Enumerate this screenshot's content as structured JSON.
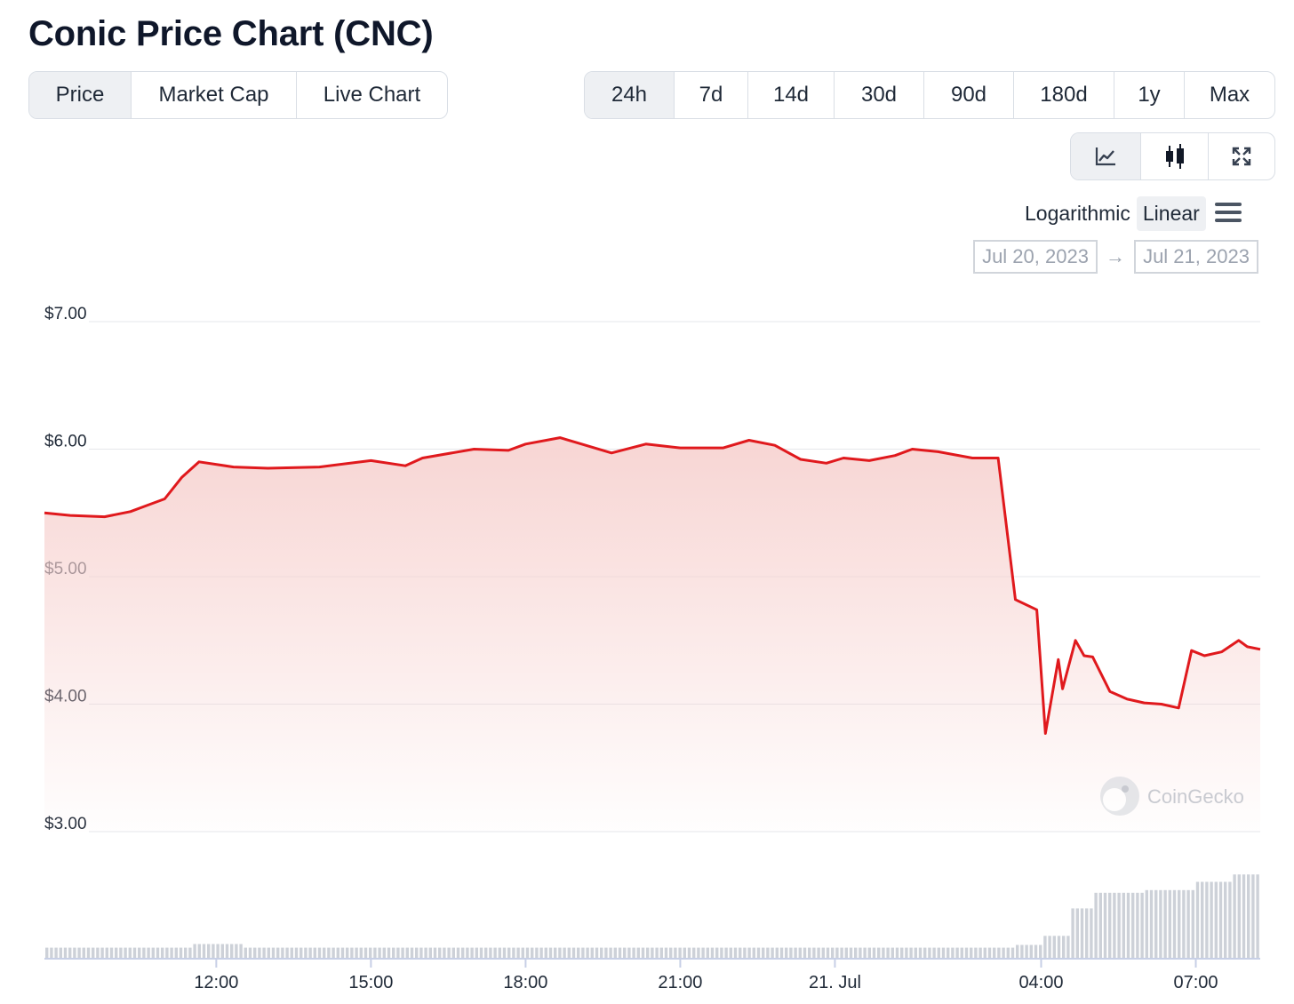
{
  "page": {
    "title": "Conic Price Chart (CNC)"
  },
  "view_tabs": [
    {
      "label": "Price",
      "active": true
    },
    {
      "label": "Market Cap",
      "active": false
    },
    {
      "label": "Live Chart",
      "active": false
    }
  ],
  "range_tabs": [
    {
      "label": "24h",
      "active": true
    },
    {
      "label": "7d",
      "active": false
    },
    {
      "label": "14d",
      "active": false
    },
    {
      "label": "30d",
      "active": false
    },
    {
      "label": "90d",
      "active": false
    },
    {
      "label": "180d",
      "active": false
    },
    {
      "label": "1y",
      "active": false
    },
    {
      "label": "Max",
      "active": false
    }
  ],
  "chart_type_buttons": [
    {
      "icon": "line-chart-icon",
      "active": true
    },
    {
      "icon": "candlestick-icon",
      "active": false
    },
    {
      "icon": "fullscreen-icon",
      "active": false
    }
  ],
  "scale": {
    "log_label": "Logarithmic",
    "linear_label": "Linear",
    "active": "Linear",
    "menu_icon": "hamburger-menu-icon"
  },
  "date_range": {
    "from": "Jul 20, 2023",
    "to": "Jul 21, 2023",
    "arrow": "→"
  },
  "watermark": {
    "text": "CoinGecko",
    "icon": "coingecko-logo-icon"
  },
  "colors": {
    "line": "#e0191d",
    "fill_top": "#f7d3d1",
    "volume": "#cdd1d8",
    "grid": "#e5e7eb",
    "axis": "#c7cfe6"
  },
  "chart_data": {
    "type": "line",
    "title": "",
    "xlabel": "",
    "ylabel": "",
    "ylim": [
      3,
      7
    ],
    "y_ticks": [
      {
        "value": 7,
        "label": "$7.00"
      },
      {
        "value": 6,
        "label": "$6.00"
      },
      {
        "value": 5,
        "label": "$5.00"
      },
      {
        "value": 4,
        "label": "$4.00"
      },
      {
        "value": 3,
        "label": "$3.00"
      }
    ],
    "xlim": [
      "2023-07-20 08:40",
      "2023-07-21 08:15"
    ],
    "x_ticks": [
      {
        "time": "2023-07-20 12:00",
        "label": "12:00"
      },
      {
        "time": "2023-07-20 15:00",
        "label": "15:00"
      },
      {
        "time": "2023-07-20 18:00",
        "label": "18:00"
      },
      {
        "time": "2023-07-20 21:00",
        "label": "21:00"
      },
      {
        "time": "2023-07-21 00:00",
        "label": "21. Jul"
      },
      {
        "time": "2023-07-21 04:00",
        "label": "04:00"
      },
      {
        "time": "2023-07-21 07:00",
        "label": "07:00"
      }
    ],
    "series": [
      {
        "x": [
          "2023-07-20 08:40",
          "2023-07-20 09:10",
          "2023-07-20 09:50",
          "2023-07-20 10:20",
          "2023-07-20 10:40",
          "2023-07-20 11:00",
          "2023-07-20 11:20",
          "2023-07-20 11:40",
          "2023-07-20 12:20",
          "2023-07-20 13:00",
          "2023-07-20 14:00",
          "2023-07-20 15:00",
          "2023-07-20 15:40",
          "2023-07-20 16:00",
          "2023-07-20 17:00",
          "2023-07-20 17:40",
          "2023-07-20 18:00",
          "2023-07-20 18:40",
          "2023-07-20 19:00",
          "2023-07-20 19:40",
          "2023-07-20 20:20",
          "2023-07-20 21:00",
          "2023-07-20 21:50",
          "2023-07-20 22:20",
          "2023-07-20 22:50",
          "2023-07-20 23:20",
          "2023-07-20 23:50",
          "2023-07-21 00:10",
          "2023-07-21 00:40",
          "2023-07-21 01:10",
          "2023-07-21 01:30",
          "2023-07-21 02:00",
          "2023-07-21 02:40",
          "2023-07-21 03:10",
          "2023-07-21 03:30",
          "2023-07-21 03:55",
          "2023-07-21 04:05",
          "2023-07-21 04:20",
          "2023-07-21 04:25",
          "2023-07-21 04:40",
          "2023-07-21 04:50",
          "2023-07-21 05:00",
          "2023-07-21 05:20",
          "2023-07-21 05:40",
          "2023-07-21 06:00",
          "2023-07-21 06:20",
          "2023-07-21 06:40",
          "2023-07-21 06:55",
          "2023-07-21 07:10",
          "2023-07-21 07:30",
          "2023-07-21 07:50",
          "2023-07-21 08:00",
          "2023-07-21 08:15"
        ],
        "values": [
          5.5,
          5.48,
          5.47,
          5.51,
          5.56,
          5.61,
          5.78,
          5.9,
          5.86,
          5.85,
          5.86,
          5.91,
          5.87,
          5.93,
          6.0,
          5.99,
          6.04,
          6.09,
          6.05,
          5.97,
          6.04,
          6.01,
          6.01,
          6.07,
          6.03,
          5.92,
          5.89,
          5.93,
          5.91,
          5.95,
          6.0,
          5.98,
          5.93,
          5.93,
          4.82,
          4.74,
          3.77,
          4.35,
          4.12,
          4.5,
          4.38,
          4.37,
          4.1,
          4.04,
          4.01,
          4.0,
          3.97,
          4.42,
          4.38,
          4.41,
          4.5,
          4.45,
          4.43
        ]
      }
    ],
    "volume": {
      "x": [
        "2023-07-20 08:40",
        "2023-07-20 11:00",
        "2023-07-20 11:30",
        "2023-07-20 12:30",
        "2023-07-21 03:30",
        "2023-07-21 04:00",
        "2023-07-21 04:30",
        "2023-07-21 05:00",
        "2023-07-21 06:00",
        "2023-07-21 07:00",
        "2023-07-21 07:40",
        "2023-07-21 08:15"
      ],
      "values": [
        0.12,
        0.12,
        0.16,
        0.12,
        0.15,
        0.25,
        0.55,
        0.72,
        0.75,
        0.84,
        0.92,
        0.96
      ]
    }
  }
}
